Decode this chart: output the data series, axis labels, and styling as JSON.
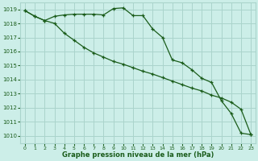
{
  "xlabel": "Graphe pression niveau de la mer (hPa)",
  "background_color": "#cceee8",
  "grid_color": "#aad4cc",
  "line_color": "#1a5c1a",
  "ylim": [
    1009.5,
    1019.5
  ],
  "xlim": [
    -0.5,
    23.5
  ],
  "yticks": [
    1010,
    1011,
    1012,
    1013,
    1014,
    1015,
    1016,
    1017,
    1018,
    1019
  ],
  "xticks": [
    0,
    1,
    2,
    3,
    4,
    5,
    6,
    7,
    8,
    9,
    10,
    11,
    12,
    13,
    14,
    15,
    16,
    17,
    18,
    19,
    20,
    21,
    22,
    23
  ],
  "series1_x": [
    0,
    1,
    2,
    3,
    4,
    5,
    6,
    7,
    8,
    9,
    10,
    11,
    12,
    13,
    14,
    15,
    16,
    17,
    18,
    19,
    20,
    21,
    22,
    23
  ],
  "series1_y": [
    1018.9,
    1018.5,
    1018.2,
    1018.5,
    1018.6,
    1018.65,
    1018.65,
    1018.65,
    1018.6,
    1019.05,
    1019.1,
    1018.55,
    1018.55,
    1017.6,
    1017.0,
    1015.4,
    1015.2,
    1014.7,
    1014.1,
    1013.8,
    1012.5,
    1011.6,
    1010.2,
    1010.1
  ],
  "series2_x": [
    0,
    1,
    2,
    3,
    4,
    5,
    6,
    7,
    8,
    9,
    10,
    11,
    12,
    13,
    14,
    15,
    16,
    17,
    18,
    19,
    20,
    21,
    22,
    23
  ],
  "series2_y": [
    1018.9,
    1018.5,
    1018.2,
    1018.0,
    1017.3,
    1016.8,
    1016.3,
    1015.9,
    1015.6,
    1015.3,
    1015.1,
    1014.85,
    1014.6,
    1014.4,
    1014.15,
    1013.9,
    1013.65,
    1013.4,
    1013.2,
    1012.9,
    1012.7,
    1012.4,
    1011.9,
    1010.1
  ]
}
